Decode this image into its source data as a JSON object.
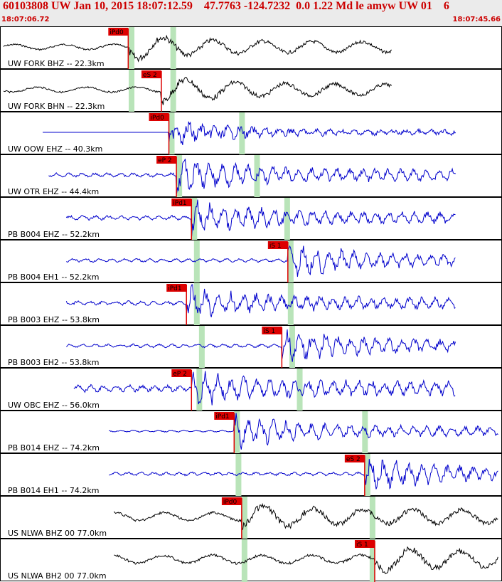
{
  "header": {
    "title": "60103808 UW Jan 10, 2015 18:07:12.59    47.7763 -124.7232  0.0 1.22 Md le amyw UW 01    6",
    "start_time": "18:07:06.72",
    "end_time": "18:07:45.66"
  },
  "colors": {
    "pick_marker": "#dd0000",
    "green_band": "#b9e4b9",
    "trace_blue": "#0000cc",
    "trace_black": "#000000"
  },
  "panels": [
    {
      "label": "UW FORK BHZ -- 22.3km",
      "phase": "iPd0",
      "color": "black",
      "start": 0.0,
      "pick": 0.254,
      "amp": 1.0,
      "quiet": 0.25,
      "green": [
        0.255,
        0.338
      ]
    },
    {
      "label": "UW FORK BHN -- 22.3km",
      "phase": "eS 2",
      "color": "black",
      "start": 0.0,
      "pick": 0.32,
      "amp": 1.0,
      "quiet": 0.25,
      "green": [
        0.255,
        0.338
      ]
    },
    {
      "label": "UW OOW EHZ -- 40.3km",
      "phase": "iPd0",
      "color": "blue",
      "start": 0.078,
      "pick": 0.335,
      "amp": 0.6,
      "quiet": 0.0,
      "green": [
        0.335,
        0.475
      ]
    },
    {
      "label": "UW OTR EHZ -- 44.4km",
      "phase": "eP 2",
      "color": "blue",
      "start": 0.09,
      "pick": 0.35,
      "amp": 1.0,
      "quiet": 0.15,
      "green": [
        0.35,
        0.505
      ]
    },
    {
      "label": "PB B004 EHZ -- 52.2km",
      "phase": "iPd1",
      "color": "blue",
      "start": 0.125,
      "pick": 0.38,
      "amp": 1.0,
      "quiet": 0.15,
      "green": [
        0.38,
        0.565
      ]
    },
    {
      "label": "PB B004 EH1 -- 52.2km",
      "phase": "iS 1",
      "color": "blue",
      "start": 0.125,
      "pick": 0.572,
      "amp": 1.0,
      "quiet": 0.12,
      "green": [
        0.385,
        0.572
      ]
    },
    {
      "label": "PB B003 EHZ -- 53.8km",
      "phase": "iPd1",
      "color": "blue",
      "start": 0.125,
      "pick": 0.37,
      "amp": 1.0,
      "quiet": 0.15,
      "green": [
        0.385,
        0.572
      ]
    },
    {
      "label": "PB B003 EH2 -- 53.8km",
      "phase": "iS 1",
      "color": "blue",
      "start": 0.125,
      "pick": 0.56,
      "amp": 1.0,
      "quiet": 0.12,
      "green": [
        0.395,
        0.575
      ]
    },
    {
      "label": "UW OBC EHZ -- 56.0km",
      "phase": "eP 2",
      "color": "blue",
      "start": 0.14,
      "pick": 0.38,
      "amp": 1.0,
      "quiet": 0.25,
      "green": [
        0.39,
        0.59
      ]
    },
    {
      "label": "PB B014 EHZ -- 74.2km",
      "phase": "iPd1",
      "color": "blue",
      "start": 0.21,
      "pick": 0.465,
      "amp": 1.0,
      "quiet": 0.06,
      "green": [
        0.465,
        0.72
      ]
    },
    {
      "label": "PB B014 EH1 -- 74.2km",
      "phase": "eS 2",
      "color": "blue",
      "start": 0.21,
      "pick": 0.725,
      "amp": 1.0,
      "quiet": 0.12,
      "green": [
        0.468,
        0.725
      ]
    },
    {
      "label": "US NLWA BHZ 00 77.0km",
      "phase": "iPd0",
      "color": "black",
      "start": 0.22,
      "pick": 0.48,
      "amp": 1.0,
      "quiet": 0.4,
      "green": [
        0.48,
        0.735
      ]
    },
    {
      "label": "US NLWA BH2 00 77.0km",
      "phase": "iS 1",
      "color": "black",
      "start": 0.22,
      "pick": 0.745,
      "amp": 1.0,
      "quiet": 0.4,
      "green": [
        0.48,
        0.735
      ]
    }
  ]
}
